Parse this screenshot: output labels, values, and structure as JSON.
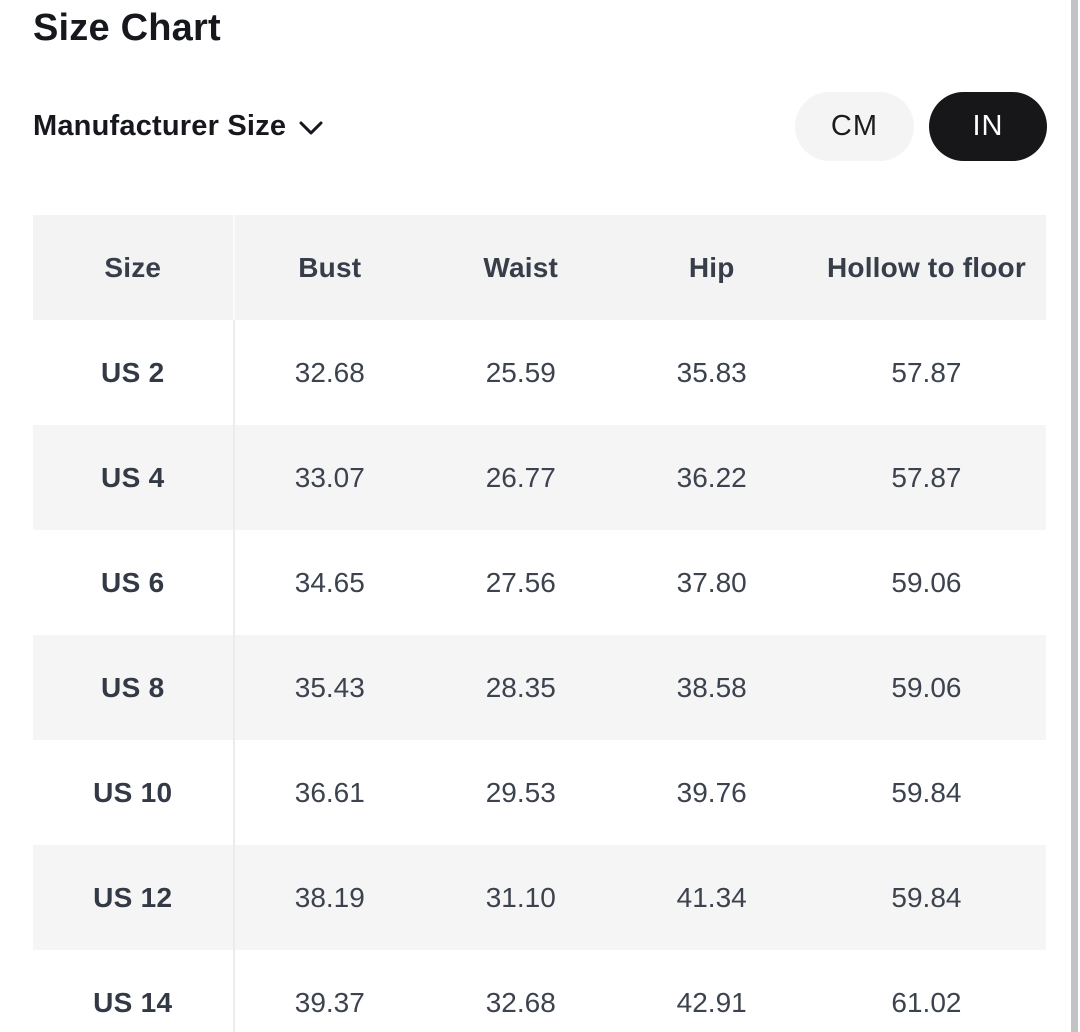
{
  "page": {
    "title": "Size Chart"
  },
  "controls": {
    "size_standard": {
      "label": "Manufacturer Size",
      "icon": "chevron-down-icon"
    },
    "unit_toggle": {
      "options": [
        {
          "label": "CM",
          "selected": false
        },
        {
          "label": "IN",
          "selected": true
        }
      ]
    }
  },
  "colors": {
    "selected_pill_bg": "#17171a",
    "selected_pill_text": "#ffffff",
    "unselected_pill_bg": "#f4f4f5",
    "header_row_bg": "#f3f3f4",
    "stripe_row_bg": "#f5f5f6",
    "table_text": "#3d434e"
  },
  "table": {
    "headers": [
      "Size",
      "Bust",
      "Waist",
      "Hip",
      "Hollow to floor"
    ],
    "rows": [
      {
        "size": "US 2",
        "values": [
          "32.68",
          "25.59",
          "35.83",
          "57.87"
        ]
      },
      {
        "size": "US 4",
        "values": [
          "33.07",
          "26.77",
          "36.22",
          "57.87"
        ]
      },
      {
        "size": "US 6",
        "values": [
          "34.65",
          "27.56",
          "37.80",
          "59.06"
        ]
      },
      {
        "size": "US 8",
        "values": [
          "35.43",
          "28.35",
          "38.58",
          "59.06"
        ]
      },
      {
        "size": "US 10",
        "values": [
          "36.61",
          "29.53",
          "39.76",
          "59.84"
        ]
      },
      {
        "size": "US 12",
        "values": [
          "38.19",
          "31.10",
          "41.34",
          "59.84"
        ]
      },
      {
        "size": "US 14",
        "values": [
          "39.37",
          "32.68",
          "42.91",
          "61.02"
        ]
      }
    ]
  }
}
